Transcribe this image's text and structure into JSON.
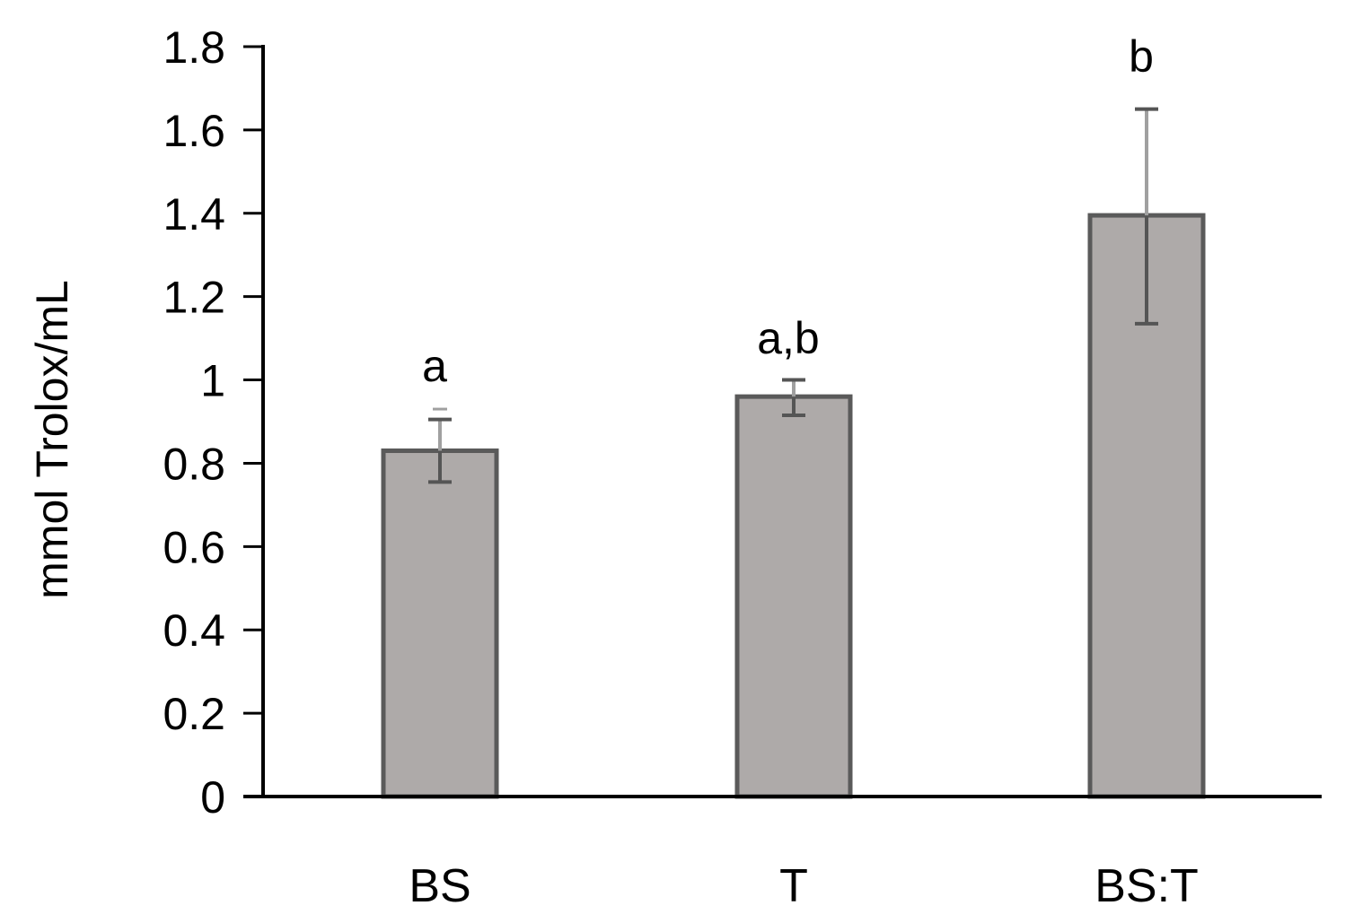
{
  "chart_data": {
    "type": "bar",
    "ylabel": "mmol Trolox/mL",
    "xlabel": "",
    "title": "",
    "categories": [
      "BS",
      "T",
      "BS:T"
    ],
    "values": [
      0.83,
      0.96,
      1.395
    ],
    "error_bars": [
      {
        "low": 0.755,
        "high": 0.905,
        "cap_high": 0.93
      },
      {
        "low": 0.915,
        "high": 1.0
      },
      {
        "low": 1.135,
        "high": 1.65
      }
    ],
    "significance_labels": [
      "a",
      "a,b",
      "b"
    ],
    "ylim": [
      0,
      1.8
    ],
    "yticks": [
      "0",
      "0.2",
      "0.4",
      "0.6",
      "0.8",
      "1",
      "1.2",
      "1.4",
      "1.6",
      "1.8"
    ],
    "ytick_values": [
      0,
      0.2,
      0.4,
      0.6,
      0.8,
      1.0,
      1.2,
      1.4,
      1.6,
      1.8
    ],
    "grid": false,
    "colors": {
      "bar_fill": "#aeaaa9",
      "bar_stroke": "#5a5a5a",
      "error_bar": "#555555",
      "error_bar_light": "#a0a0a0",
      "axis": "#000000"
    }
  }
}
